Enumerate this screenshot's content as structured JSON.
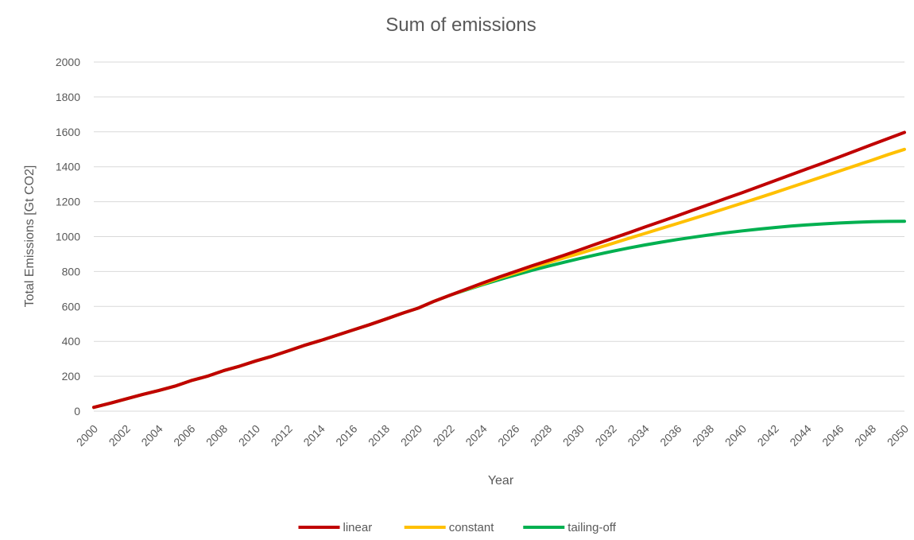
{
  "chart_data": {
    "type": "line",
    "title": "Sum of emissions",
    "xlabel": "Year",
    "ylabel": "Total Emissions [Gt CO2]",
    "ylim": [
      0,
      2000
    ],
    "yticks": [
      0,
      200,
      400,
      600,
      800,
      1000,
      1200,
      1400,
      1600,
      1800,
      2000
    ],
    "grid": true,
    "legend_position": "bottom",
    "x": [
      2000,
      2001,
      2002,
      2003,
      2004,
      2005,
      2006,
      2007,
      2008,
      2009,
      2010,
      2011,
      2012,
      2013,
      2014,
      2015,
      2016,
      2017,
      2018,
      2019,
      2020,
      2021,
      2022,
      2023,
      2024,
      2025,
      2026,
      2027,
      2028,
      2029,
      2030,
      2031,
      2032,
      2033,
      2034,
      2035,
      2036,
      2037,
      2038,
      2039,
      2040,
      2041,
      2042,
      2043,
      2044,
      2045,
      2046,
      2047,
      2048,
      2049,
      2050
    ],
    "xtick_labels": [
      "2000",
      "2002",
      "2004",
      "2006",
      "2008",
      "2010",
      "2012",
      "2014",
      "2016",
      "2018",
      "2020",
      "2022",
      "2024",
      "2026",
      "2028",
      "2030",
      "2032",
      "2034",
      "2036",
      "2038",
      "2040",
      "2042",
      "2044",
      "2046",
      "2048",
      "2050"
    ],
    "series": [
      {
        "name": "linear",
        "color": "#c00000",
        "values": [
          22,
          45,
          70,
          95,
          118,
          143,
          175,
          200,
          232,
          258,
          288,
          315,
          346,
          377,
          405,
          435,
          465,
          495,
          527,
          560,
          590,
          630,
          665,
          700,
          735,
          768,
          800,
          832,
          862,
          893,
          925,
          958,
          990,
          1022,
          1055,
          1087,
          1120,
          1153,
          1186,
          1219,
          1252,
          1286,
          1320,
          1354,
          1388,
          1422,
          1457,
          1492,
          1527,
          1562,
          1597
        ]
      },
      {
        "name": "constant",
        "color": "#ffc000",
        "values": [
          22,
          45,
          70,
          95,
          118,
          143,
          175,
          200,
          232,
          258,
          288,
          315,
          346,
          377,
          405,
          435,
          465,
          495,
          527,
          560,
          590,
          630,
          665,
          698,
          730,
          762,
          792,
          822,
          850,
          878,
          905,
          933,
          961,
          990,
          1018,
          1047,
          1075,
          1104,
          1133,
          1162,
          1192,
          1222,
          1252,
          1283,
          1314,
          1345,
          1376,
          1407,
          1438,
          1470,
          1500
        ]
      },
      {
        "name": "tailing-off",
        "color": "#00b050",
        "values": [
          22,
          45,
          70,
          95,
          118,
          143,
          175,
          200,
          232,
          258,
          288,
          315,
          346,
          377,
          405,
          435,
          465,
          495,
          527,
          560,
          590,
          630,
          665,
          695,
          725,
          753,
          780,
          806,
          830,
          853,
          875,
          896,
          916,
          935,
          952,
          968,
          983,
          997,
          1010,
          1022,
          1033,
          1043,
          1052,
          1060,
          1067,
          1073,
          1078,
          1082,
          1085,
          1087,
          1088
        ]
      }
    ]
  }
}
